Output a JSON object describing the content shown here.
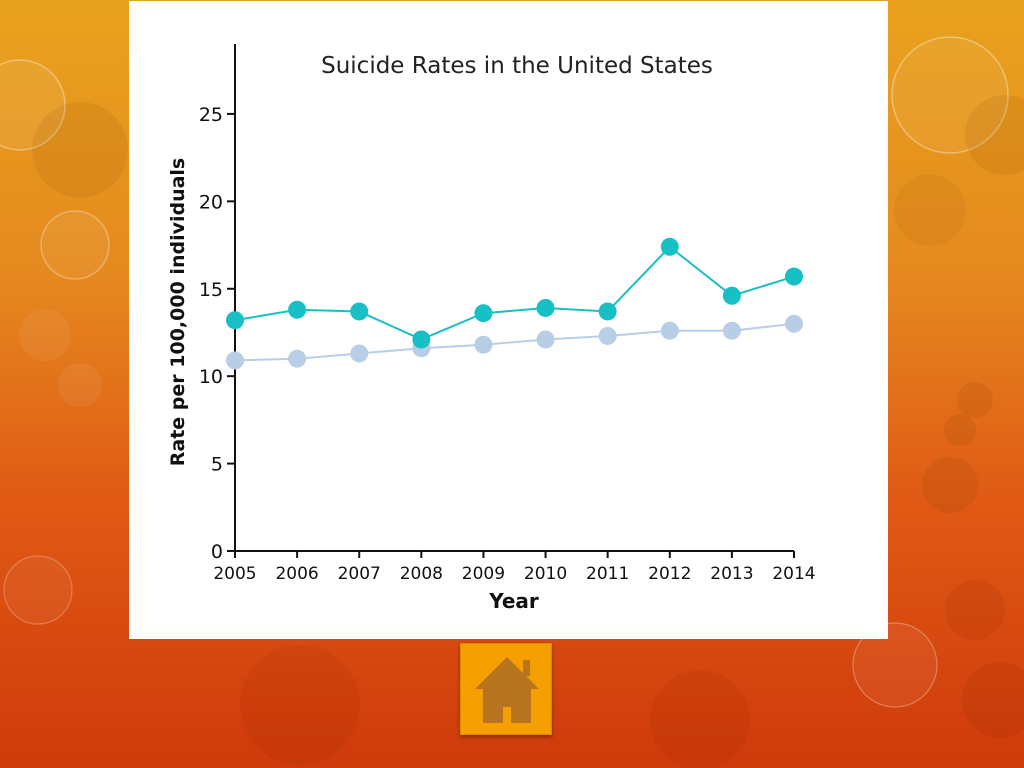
{
  "colors": {
    "series_primary": "#18bfc4",
    "series_secondary": "#b8cde6",
    "axis": "#111111",
    "home_button": "#f5a000",
    "home_house": "#b8751f"
  },
  "icons": {
    "home": "home-icon"
  },
  "chart_data": {
    "type": "line",
    "title": "Suicide Rates in the United States",
    "xlabel": "Year",
    "ylabel": "Rate per 100,000 individuals",
    "x": [
      "2005",
      "2006",
      "2007",
      "2008",
      "2009",
      "2010",
      "2011",
      "2012",
      "2013",
      "2014"
    ],
    "ylim": [
      0,
      29
    ],
    "yticks": [
      0,
      5,
      10,
      15,
      20,
      25
    ],
    "grid": false,
    "legend": "none",
    "series": [
      {
        "values": [
          13.2,
          13.8,
          13.7,
          12.1,
          13.6,
          13.9,
          13.7,
          17.4,
          14.6,
          15.7
        ]
      },
      {
        "values": [
          10.9,
          11.0,
          11.3,
          11.6,
          11.8,
          12.1,
          12.3,
          12.6,
          12.6,
          13.0
        ]
      }
    ]
  }
}
